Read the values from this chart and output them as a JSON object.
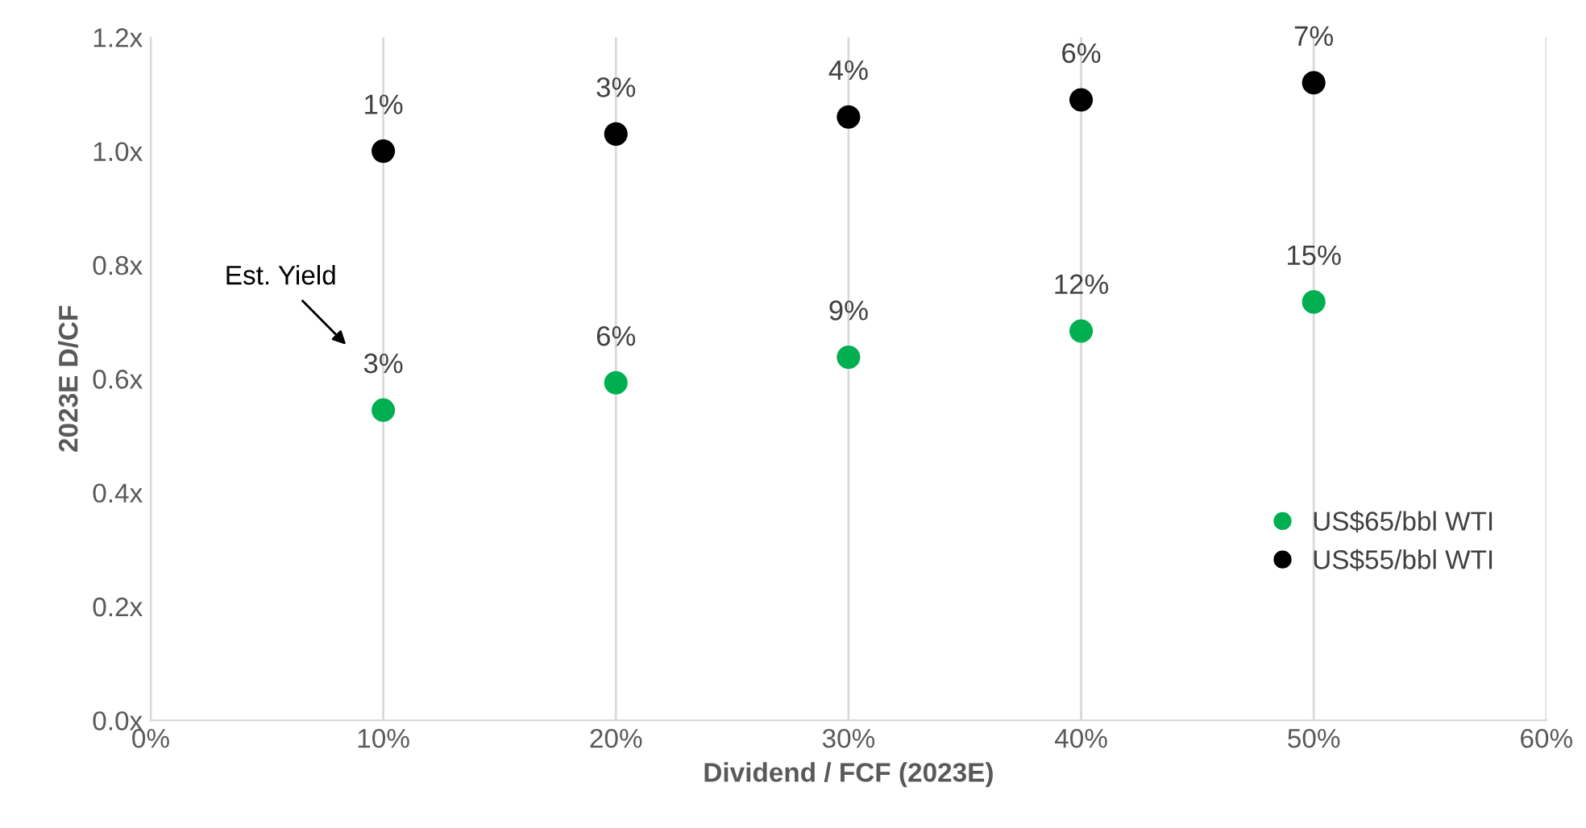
{
  "chart_data": {
    "type": "scatter",
    "xlabel": "Dividend / FCF (2023E)",
    "ylabel": "2023E D/CF",
    "x": [
      10,
      20,
      30,
      40,
      50
    ],
    "series": [
      {
        "name": "US$65/bbl WTI",
        "color": "#00b050",
        "values": [
          0.545,
          0.593,
          0.638,
          0.684,
          0.735
        ]
      },
      {
        "name": "US$55/bbl WTI",
        "color": "#000000",
        "values": [
          1.0,
          1.03,
          1.06,
          1.09,
          1.12
        ]
      }
    ],
    "xlim": [
      0,
      60
    ],
    "xticks": [
      {
        "value": 0,
        "label": "0%"
      },
      {
        "value": 10,
        "label": "10%"
      },
      {
        "value": 20,
        "label": "20%"
      },
      {
        "value": 30,
        "label": "30%"
      },
      {
        "value": 40,
        "label": "40%"
      },
      {
        "value": 50,
        "label": "50%"
      },
      {
        "value": 60,
        "label": "60%"
      }
    ],
    "ylim": [
      0,
      1.2
    ],
    "yticks": [
      {
        "value": 0,
        "label": "0.0x"
      },
      {
        "value": 0.2,
        "label": "0.2x"
      },
      {
        "value": 0.4,
        "label": "0.4x"
      },
      {
        "value": 0.6,
        "label": "0.6x"
      },
      {
        "value": 0.8,
        "label": "0.8x"
      },
      {
        "value": 1.0,
        "label": "1.0x"
      },
      {
        "value": 1.2,
        "label": "1.2x"
      }
    ],
    "grid": "x",
    "legend": "center right",
    "marker": "circle",
    "annotations": [
      "Est. Yield",
      {
        "text": "3%",
        "x": 10,
        "y": 0.545
      },
      {
        "text": "6%",
        "x": 20,
        "y": 0.593
      },
      {
        "text": "9%",
        "x": 30,
        "y": 0.638
      },
      {
        "text": "12%",
        "x": 40,
        "y": 0.684
      },
      {
        "text": "15%",
        "x": 50,
        "y": 0.735
      },
      {
        "text": "1%",
        "x": 10,
        "y": 1.0
      },
      {
        "text": "3%",
        "x": 20,
        "y": 1.03
      },
      {
        "text": "4%",
        "x": 30,
        "y": 1.06
      },
      {
        "text": "6%",
        "x": 40,
        "y": 1.09
      },
      {
        "text": "7%",
        "x": 50,
        "y": 1.12
      }
    ]
  }
}
